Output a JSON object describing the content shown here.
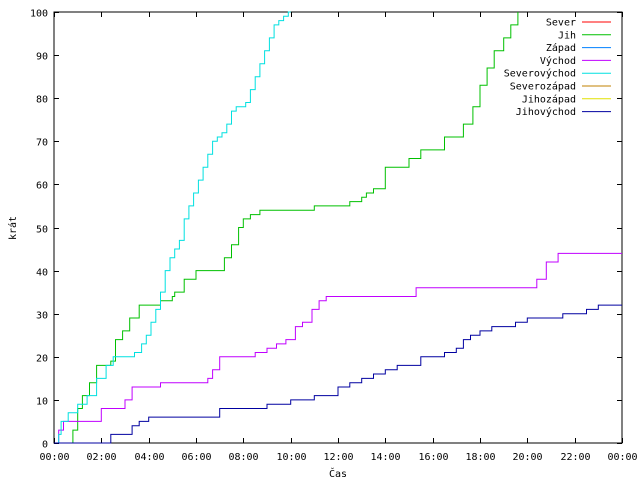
{
  "chart_data": {
    "type": "line",
    "title": "",
    "xlabel": "Čas",
    "ylabel": "krát",
    "xlim": [
      0,
      24
    ],
    "ylim": [
      0,
      100
    ],
    "x_ticks": [
      {
        "value": 0,
        "label": "00:00"
      },
      {
        "value": 2,
        "label": "02:00"
      },
      {
        "value": 4,
        "label": "04:00"
      },
      {
        "value": 6,
        "label": "06:00"
      },
      {
        "value": 8,
        "label": "08:00"
      },
      {
        "value": 10,
        "label": "10:00"
      },
      {
        "value": 12,
        "label": "12:00"
      },
      {
        "value": 14,
        "label": "14:00"
      },
      {
        "value": 16,
        "label": "16:00"
      },
      {
        "value": 18,
        "label": "18:00"
      },
      {
        "value": 20,
        "label": "20:00"
      },
      {
        "value": 22,
        "label": "22:00"
      },
      {
        "value": 24,
        "label": "00:00"
      }
    ],
    "y_ticks": [
      0,
      10,
      20,
      30,
      40,
      50,
      60,
      70,
      80,
      90,
      100
    ],
    "grid": false,
    "legend_position": "top-right",
    "series": [
      {
        "name": "Sever",
        "color": "#ff0000",
        "x": [],
        "y": []
      },
      {
        "name": "Jih",
        "color": "#00c000",
        "x": [
          0.0,
          0.6,
          0.8,
          1.0,
          1.2,
          1.5,
          1.8,
          2.0,
          2.4,
          2.6,
          2.9,
          3.2,
          3.6,
          4.0,
          4.5,
          5.0,
          5.1,
          5.5,
          6.0,
          6.5,
          6.9,
          7.2,
          7.5,
          7.8,
          8.0,
          8.3,
          8.7,
          9.0,
          10.0,
          11.0,
          11.5,
          12.0,
          12.5,
          13.0,
          13.2,
          13.5,
          14.0,
          14.5,
          15.0,
          15.5,
          16.0,
          16.5,
          16.9,
          17.3,
          17.7,
          18.0,
          18.3,
          18.6,
          19.0,
          19.3,
          19.6
        ],
        "y": [
          0,
          0,
          3,
          8,
          11,
          14,
          18,
          18,
          19,
          24,
          26,
          29,
          32,
          32,
          33,
          34,
          35,
          38,
          40,
          40,
          40,
          43,
          46,
          50,
          52,
          53,
          54,
          54,
          54,
          55,
          55,
          55,
          56,
          57,
          58,
          59,
          64,
          64,
          66,
          68,
          68,
          71,
          71,
          74,
          78,
          83,
          87,
          91,
          94,
          97,
          100
        ]
      },
      {
        "name": "Západ",
        "color": "#0080ff",
        "x": [],
        "y": []
      },
      {
        "name": "Východ",
        "color": "#c000ff",
        "x": [
          0.0,
          0.2,
          0.4,
          1.0,
          1.5,
          2.0,
          2.5,
          3.0,
          3.3,
          3.6,
          4.0,
          4.5,
          5.0,
          5.5,
          6.0,
          6.5,
          6.7,
          7.0,
          7.5,
          8.0,
          8.5,
          9.0,
          9.4,
          9.8,
          10.2,
          10.5,
          10.9,
          11.2,
          11.5,
          12.0,
          13.0,
          14.0,
          15.0,
          15.3,
          16.0,
          17.0,
          18.0,
          19.0,
          20.0,
          20.4,
          20.8,
          21.3,
          22.0,
          23.0,
          24.0
        ],
        "y": [
          0,
          3,
          5,
          5,
          5,
          8,
          8,
          10,
          13,
          13,
          13,
          14,
          14,
          14,
          14,
          15,
          17,
          20,
          20,
          20,
          21,
          22,
          23,
          24,
          27,
          28,
          31,
          33,
          34,
          34,
          34,
          34,
          34,
          36,
          36,
          36,
          36,
          36,
          36,
          38,
          42,
          44,
          44,
          44,
          44
        ]
      },
      {
        "name": "Severovýchod",
        "color": "#00e0e0",
        "x": [
          0.0,
          0.2,
          0.3,
          0.6,
          1.0,
          1.4,
          1.8,
          2.2,
          2.5,
          3.0,
          3.4,
          3.7,
          3.9,
          4.1,
          4.3,
          4.5,
          4.7,
          4.9,
          5.1,
          5.3,
          5.5,
          5.7,
          5.9,
          6.1,
          6.3,
          6.5,
          6.7,
          6.9,
          7.1,
          7.3,
          7.5,
          7.7,
          7.9,
          8.1,
          8.3,
          8.5,
          8.7,
          8.9,
          9.1,
          9.3,
          9.5,
          9.7,
          9.9,
          10.0
        ],
        "y": [
          0,
          2,
          5,
          7,
          9,
          11,
          15,
          18,
          20,
          20,
          21,
          23,
          25,
          28,
          31,
          35,
          40,
          43,
          45,
          47,
          52,
          55,
          58,
          61,
          64,
          67,
          70,
          71,
          72,
          74,
          77,
          78,
          78,
          79,
          82,
          85,
          88,
          91,
          94,
          97,
          98,
          99,
          100,
          100
        ]
      },
      {
        "name": "Severozápad",
        "color": "#c08000",
        "x": [],
        "y": []
      },
      {
        "name": "Jihozápad",
        "color": "#e0e000",
        "x": [],
        "y": []
      },
      {
        "name": "Jihovýchod",
        "color": "#0000a0",
        "x": [
          0.0,
          2.4,
          3.3,
          3.6,
          4.0,
          5.0,
          6.0,
          7.0,
          8.0,
          9.0,
          10.0,
          10.5,
          11.0,
          12.0,
          12.5,
          13.0,
          13.5,
          14.0,
          14.5,
          15.0,
          15.5,
          16.0,
          16.5,
          17.0,
          17.3,
          17.6,
          18.0,
          18.5,
          19.0,
          19.5,
          20.0,
          21.0,
          21.5,
          22.0,
          22.5,
          23.0,
          24.0
        ],
        "y": [
          0,
          2,
          4,
          5,
          6,
          6,
          6,
          8,
          8,
          9,
          10,
          10,
          11,
          13,
          14,
          15,
          16,
          17,
          18,
          18,
          20,
          20,
          21,
          22,
          24,
          25,
          26,
          27,
          27,
          28,
          29,
          29,
          30,
          30,
          31,
          32,
          32
        ]
      }
    ]
  }
}
